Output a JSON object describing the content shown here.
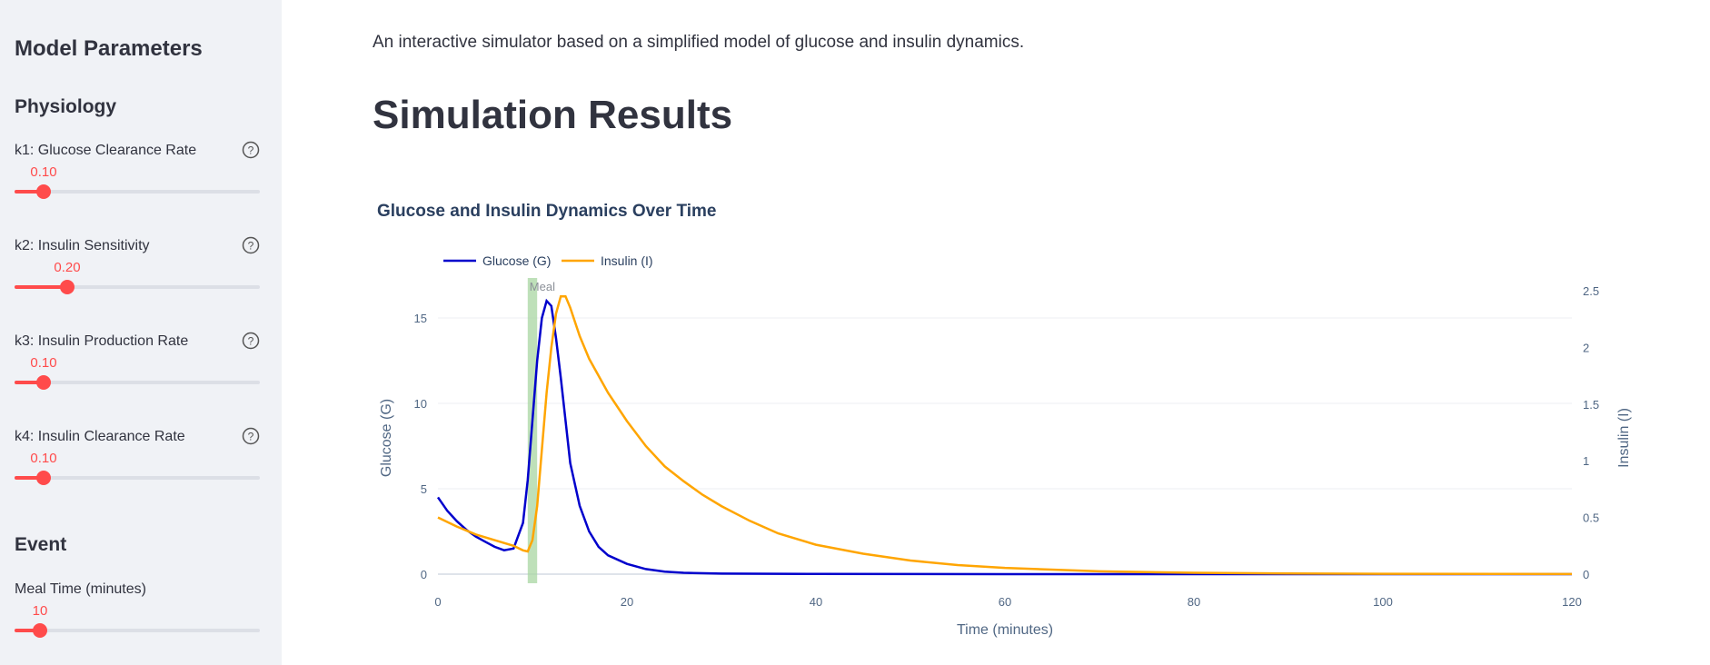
{
  "sidebar": {
    "title": "Model Parameters",
    "section_physiology": "Physiology",
    "params": [
      {
        "label": "k1: Glucose Clearance Rate",
        "value": "0.10",
        "fraction": 0.12
      },
      {
        "label": "k2: Insulin Sensitivity",
        "value": "0.20",
        "fraction": 0.22
      },
      {
        "label": "k3: Insulin Production Rate",
        "value": "0.10",
        "fraction": 0.12
      },
      {
        "label": "k4: Insulin Clearance Rate",
        "value": "0.10",
        "fraction": 0.12
      }
    ],
    "section_event": "Event",
    "meal": {
      "label": "Meal Time (minutes)",
      "value": "10",
      "fraction": 0.1
    }
  },
  "main": {
    "intro": "An interactive simulator based on a simplified model of glucose and insulin dynamics.",
    "title": "Simulation Results"
  },
  "chart_data": {
    "type": "line",
    "title": "Glucose and Insulin Dynamics Over Time",
    "xlabel": "Time (minutes)",
    "ylabel_left": "Glucose (G)",
    "ylabel_right": "Insulin (I)",
    "xlim": [
      0,
      120
    ],
    "ylim_left": [
      0,
      17
    ],
    "ylim_right": [
      0,
      2.5
    ],
    "xticks": [
      "0",
      "20",
      "40",
      "60",
      "80",
      "100",
      "120"
    ],
    "yticks_left": [
      "0",
      "5",
      "10",
      "15"
    ],
    "yticks_right": [
      "0",
      "0.5",
      "1",
      "1.5",
      "2",
      "2.5"
    ],
    "legend_position": "top-left",
    "grid": true,
    "annotation": {
      "text": "Meal",
      "x_start": 9.5,
      "x_end": 10.5,
      "color": "#a8d5a2"
    },
    "series": [
      {
        "name": "Glucose (G)",
        "axis": "left",
        "color": "#0000cc",
        "x": [
          0,
          1,
          2,
          3,
          4,
          5,
          6,
          7,
          8,
          9,
          9.5,
          10,
          10.5,
          11,
          11.5,
          12,
          12.5,
          13,
          13.5,
          14,
          15,
          16,
          17,
          18,
          20,
          22,
          24,
          26,
          30,
          40,
          60,
          80,
          120
        ],
        "y": [
          4.5,
          3.7,
          3.1,
          2.6,
          2.2,
          1.9,
          1.6,
          1.4,
          1.5,
          3.0,
          5.5,
          9,
          12.5,
          15,
          16,
          15.7,
          13.8,
          11.5,
          9,
          6.5,
          4,
          2.5,
          1.6,
          1.1,
          0.6,
          0.3,
          0.15,
          0.08,
          0.03,
          0.01,
          0,
          0,
          0
        ]
      },
      {
        "name": "Insulin (I)",
        "axis": "right",
        "color": "#ffa500",
        "x": [
          0,
          2,
          4,
          6,
          8,
          9,
          9.5,
          10,
          10.5,
          11,
          11.5,
          12,
          12.5,
          13,
          13.5,
          14,
          15,
          16,
          18,
          20,
          22,
          24,
          26,
          28,
          30,
          33,
          36,
          40,
          45,
          50,
          55,
          60,
          70,
          80,
          90,
          100,
          120
        ],
        "y": [
          0.5,
          0.42,
          0.35,
          0.3,
          0.25,
          0.21,
          0.2,
          0.3,
          0.6,
          1.1,
          1.6,
          2.0,
          2.3,
          2.45,
          2.45,
          2.35,
          2.1,
          1.9,
          1.6,
          1.35,
          1.13,
          0.95,
          0.82,
          0.7,
          0.6,
          0.47,
          0.36,
          0.26,
          0.18,
          0.12,
          0.08,
          0.055,
          0.025,
          0.012,
          0.006,
          0.003,
          0.001
        ]
      }
    ]
  }
}
